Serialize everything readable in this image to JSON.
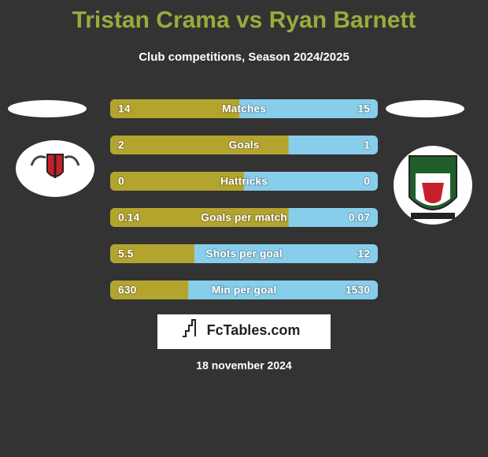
{
  "header": {
    "title": "Tristan Crama vs Ryan Barnett",
    "subtitle": "Club competitions, Season 2024/2025"
  },
  "rows": [
    {
      "label": "Matches",
      "left": 14,
      "right": 15
    },
    {
      "label": "Goals",
      "left": 2,
      "right": 1
    },
    {
      "label": "Hattricks",
      "left": 0,
      "right": 0
    },
    {
      "label": "Goals per match",
      "left": 0.14,
      "right": 0.07
    },
    {
      "label": "Shots per goal",
      "left": 5.5,
      "right": 12
    },
    {
      "label": "Min per goal",
      "left": 630,
      "right": 1530
    }
  ],
  "brand": "FcTables.com",
  "date": "18 november 2024"
}
